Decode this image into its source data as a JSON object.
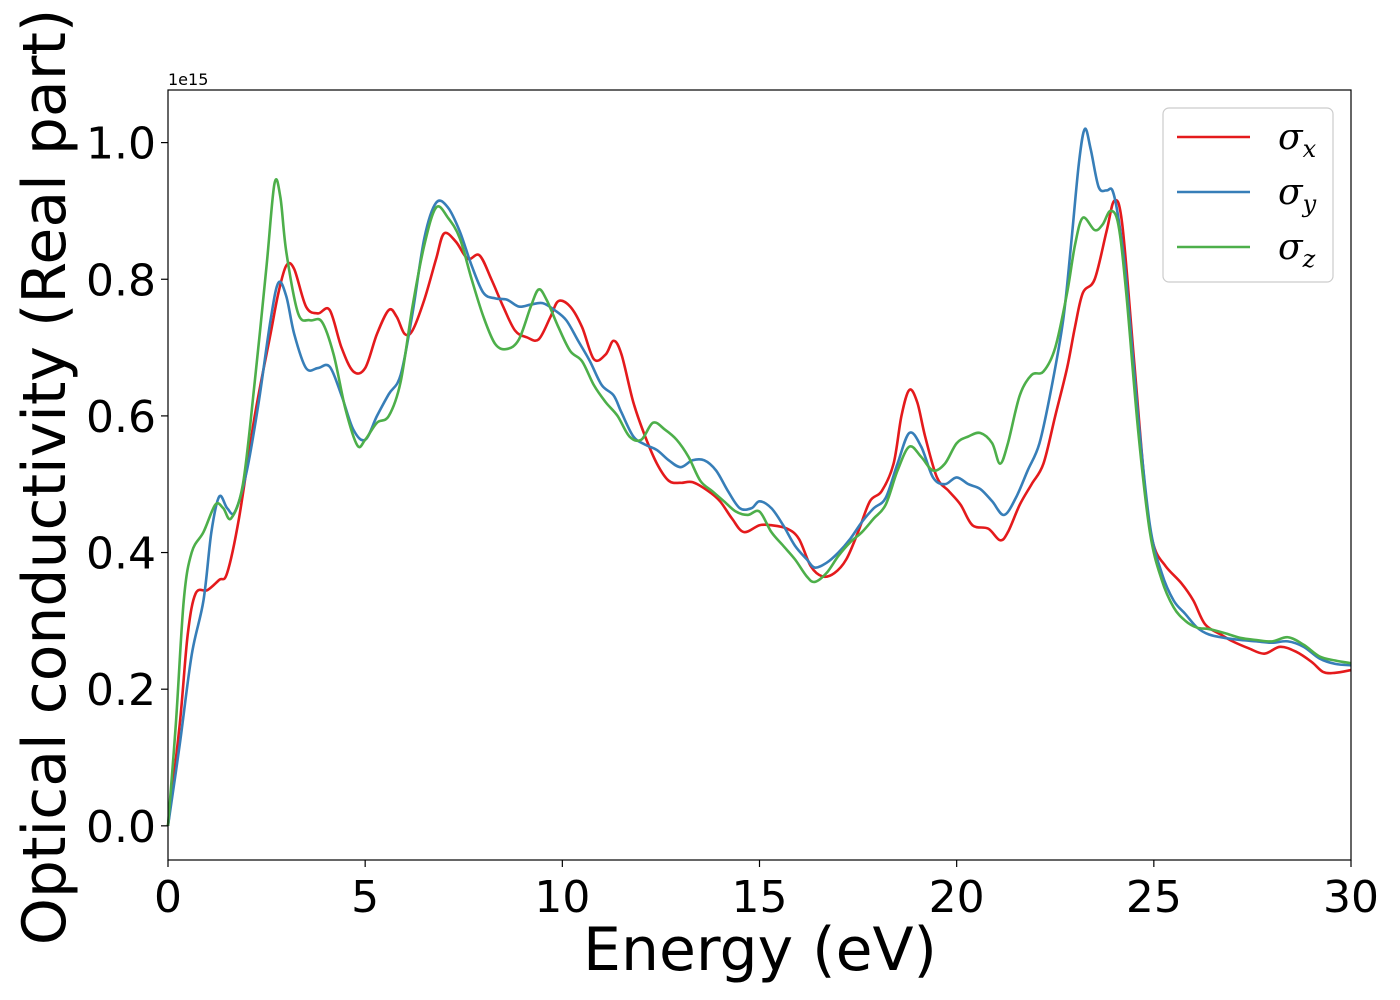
{
  "chart_data": {
    "type": "line",
    "xlabel": "Energy (eV)",
    "ylabel": "Optical conductivity (Real part)",
    "y_offset_label": "1e15",
    "xlim": [
      0,
      30
    ],
    "ylim": [
      -0.05,
      1.077
    ],
    "x_ticks": [
      0,
      5,
      10,
      15,
      20,
      25,
      30
    ],
    "x_tick_labels": [
      "0",
      "5",
      "10",
      "15",
      "20",
      "25",
      "30"
    ],
    "y_ticks": [
      0.0,
      0.2,
      0.4,
      0.6,
      0.8,
      1.0
    ],
    "y_tick_labels": [
      "0.0",
      "0.2",
      "0.4",
      "0.6",
      "0.8",
      "1.0"
    ],
    "grid": false,
    "legend_position": "top-right",
    "series": [
      {
        "name": "σx",
        "symbol": "σ",
        "sub": "x",
        "color": "#e41a1c",
        "points": [
          [
            0,
            0
          ],
          [
            0.3,
            0.15
          ],
          [
            0.5,
            0.28
          ],
          [
            0.7,
            0.34
          ],
          [
            1.0,
            0.345
          ],
          [
            1.3,
            0.36
          ],
          [
            1.5,
            0.37
          ],
          [
            1.8,
            0.45
          ],
          [
            2.2,
            0.6
          ],
          [
            2.6,
            0.72
          ],
          [
            2.8,
            0.78
          ],
          [
            3.0,
            0.82
          ],
          [
            3.2,
            0.815
          ],
          [
            3.5,
            0.76
          ],
          [
            3.8,
            0.75
          ],
          [
            4.1,
            0.755
          ],
          [
            4.4,
            0.7
          ],
          [
            4.7,
            0.665
          ],
          [
            5.0,
            0.67
          ],
          [
            5.3,
            0.72
          ],
          [
            5.6,
            0.755
          ],
          [
            5.8,
            0.745
          ],
          [
            6.0,
            0.72
          ],
          [
            6.2,
            0.725
          ],
          [
            6.5,
            0.77
          ],
          [
            6.8,
            0.83
          ],
          [
            7.0,
            0.867
          ],
          [
            7.3,
            0.855
          ],
          [
            7.6,
            0.83
          ],
          [
            7.9,
            0.835
          ],
          [
            8.2,
            0.8
          ],
          [
            8.5,
            0.76
          ],
          [
            8.8,
            0.725
          ],
          [
            9.1,
            0.715
          ],
          [
            9.4,
            0.712
          ],
          [
            9.7,
            0.745
          ],
          [
            9.9,
            0.768
          ],
          [
            10.2,
            0.76
          ],
          [
            10.5,
            0.73
          ],
          [
            10.8,
            0.683
          ],
          [
            11.1,
            0.69
          ],
          [
            11.3,
            0.71
          ],
          [
            11.5,
            0.69
          ],
          [
            11.8,
            0.62
          ],
          [
            12.1,
            0.57
          ],
          [
            12.4,
            0.53
          ],
          [
            12.7,
            0.505
          ],
          [
            13.0,
            0.502
          ],
          [
            13.3,
            0.503
          ],
          [
            13.7,
            0.49
          ],
          [
            14.0,
            0.475
          ],
          [
            14.3,
            0.45
          ],
          [
            14.6,
            0.43
          ],
          [
            15.0,
            0.44
          ],
          [
            15.3,
            0.44
          ],
          [
            15.7,
            0.435
          ],
          [
            16.0,
            0.42
          ],
          [
            16.3,
            0.38
          ],
          [
            16.6,
            0.365
          ],
          [
            16.9,
            0.37
          ],
          [
            17.2,
            0.39
          ],
          [
            17.5,
            0.43
          ],
          [
            17.8,
            0.475
          ],
          [
            18.1,
            0.49
          ],
          [
            18.4,
            0.53
          ],
          [
            18.6,
            0.6
          ],
          [
            18.8,
            0.638
          ],
          [
            19.0,
            0.62
          ],
          [
            19.2,
            0.57
          ],
          [
            19.5,
            0.51
          ],
          [
            19.8,
            0.49
          ],
          [
            20.1,
            0.47
          ],
          [
            20.4,
            0.44
          ],
          [
            20.8,
            0.435
          ],
          [
            21.1,
            0.418
          ],
          [
            21.3,
            0.43
          ],
          [
            21.6,
            0.47
          ],
          [
            21.9,
            0.5
          ],
          [
            22.2,
            0.53
          ],
          [
            22.5,
            0.6
          ],
          [
            22.8,
            0.67
          ],
          [
            23.0,
            0.73
          ],
          [
            23.2,
            0.78
          ],
          [
            23.5,
            0.8
          ],
          [
            23.8,
            0.87
          ],
          [
            24.0,
            0.915
          ],
          [
            24.2,
            0.88
          ],
          [
            24.5,
            0.68
          ],
          [
            24.8,
            0.48
          ],
          [
            25.0,
            0.41
          ],
          [
            25.3,
            0.38
          ],
          [
            25.7,
            0.355
          ],
          [
            26.0,
            0.33
          ],
          [
            26.3,
            0.295
          ],
          [
            26.7,
            0.28
          ],
          [
            27.0,
            0.27
          ],
          [
            27.4,
            0.26
          ],
          [
            27.8,
            0.252
          ],
          [
            28.2,
            0.262
          ],
          [
            28.6,
            0.255
          ],
          [
            29.0,
            0.24
          ],
          [
            29.3,
            0.225
          ],
          [
            29.6,
            0.224
          ],
          [
            30,
            0.228
          ]
        ]
      },
      {
        "name": "σy",
        "symbol": "σ",
        "sub": "y",
        "color": "#377eb8",
        "points": [
          [
            0,
            0
          ],
          [
            0.3,
            0.12
          ],
          [
            0.6,
            0.25
          ],
          [
            0.9,
            0.33
          ],
          [
            1.1,
            0.43
          ],
          [
            1.3,
            0.482
          ],
          [
            1.5,
            0.465
          ],
          [
            1.7,
            0.46
          ],
          [
            2.0,
            0.52
          ],
          [
            2.3,
            0.62
          ],
          [
            2.6,
            0.74
          ],
          [
            2.8,
            0.795
          ],
          [
            3.0,
            0.775
          ],
          [
            3.2,
            0.72
          ],
          [
            3.5,
            0.67
          ],
          [
            3.8,
            0.67
          ],
          [
            4.1,
            0.672
          ],
          [
            4.4,
            0.63
          ],
          [
            4.7,
            0.58
          ],
          [
            5.0,
            0.565
          ],
          [
            5.3,
            0.6
          ],
          [
            5.6,
            0.632
          ],
          [
            5.9,
            0.66
          ],
          [
            6.2,
            0.75
          ],
          [
            6.5,
            0.86
          ],
          [
            6.8,
            0.912
          ],
          [
            7.1,
            0.905
          ],
          [
            7.4,
            0.87
          ],
          [
            7.7,
            0.82
          ],
          [
            8.0,
            0.78
          ],
          [
            8.3,
            0.772
          ],
          [
            8.6,
            0.77
          ],
          [
            8.9,
            0.76
          ],
          [
            9.2,
            0.763
          ],
          [
            9.5,
            0.765
          ],
          [
            9.8,
            0.755
          ],
          [
            10.1,
            0.74
          ],
          [
            10.4,
            0.71
          ],
          [
            10.7,
            0.68
          ],
          [
            11.0,
            0.645
          ],
          [
            11.3,
            0.63
          ],
          [
            11.5,
            0.605
          ],
          [
            11.8,
            0.57
          ],
          [
            12.1,
            0.558
          ],
          [
            12.4,
            0.55
          ],
          [
            12.7,
            0.535
          ],
          [
            13.0,
            0.525
          ],
          [
            13.3,
            0.535
          ],
          [
            13.6,
            0.535
          ],
          [
            13.9,
            0.52
          ],
          [
            14.2,
            0.49
          ],
          [
            14.5,
            0.465
          ],
          [
            14.8,
            0.465
          ],
          [
            15.0,
            0.475
          ],
          [
            15.3,
            0.465
          ],
          [
            15.6,
            0.44
          ],
          [
            15.9,
            0.41
          ],
          [
            16.2,
            0.39
          ],
          [
            16.4,
            0.378
          ],
          [
            16.7,
            0.385
          ],
          [
            17.0,
            0.4
          ],
          [
            17.3,
            0.42
          ],
          [
            17.6,
            0.445
          ],
          [
            17.9,
            0.465
          ],
          [
            18.2,
            0.48
          ],
          [
            18.5,
            0.53
          ],
          [
            18.8,
            0.575
          ],
          [
            19.1,
            0.555
          ],
          [
            19.4,
            0.51
          ],
          [
            19.7,
            0.5
          ],
          [
            20.0,
            0.51
          ],
          [
            20.3,
            0.5
          ],
          [
            20.6,
            0.493
          ],
          [
            20.9,
            0.475
          ],
          [
            21.2,
            0.455
          ],
          [
            21.5,
            0.48
          ],
          [
            21.8,
            0.52
          ],
          [
            22.1,
            0.56
          ],
          [
            22.4,
            0.64
          ],
          [
            22.7,
            0.74
          ],
          [
            22.9,
            0.85
          ],
          [
            23.1,
            0.97
          ],
          [
            23.25,
            1.02
          ],
          [
            23.4,
            0.99
          ],
          [
            23.6,
            0.935
          ],
          [
            23.8,
            0.93
          ],
          [
            23.95,
            0.93
          ],
          [
            24.1,
            0.89
          ],
          [
            24.3,
            0.8
          ],
          [
            24.6,
            0.6
          ],
          [
            24.9,
            0.44
          ],
          [
            25.2,
            0.37
          ],
          [
            25.5,
            0.33
          ],
          [
            25.8,
            0.31
          ],
          [
            26.1,
            0.29
          ],
          [
            26.4,
            0.28
          ],
          [
            26.8,
            0.275
          ],
          [
            27.2,
            0.272
          ],
          [
            27.6,
            0.27
          ],
          [
            28.0,
            0.268
          ],
          [
            28.4,
            0.27
          ],
          [
            28.8,
            0.262
          ],
          [
            29.2,
            0.245
          ],
          [
            29.6,
            0.237
          ],
          [
            30,
            0.235
          ]
        ]
      },
      {
        "name": "σz",
        "symbol": "σ",
        "sub": "z",
        "color": "#4daf4a",
        "points": [
          [
            0,
            0
          ],
          [
            0.2,
            0.15
          ],
          [
            0.4,
            0.33
          ],
          [
            0.6,
            0.4
          ],
          [
            0.9,
            0.43
          ],
          [
            1.2,
            0.47
          ],
          [
            1.4,
            0.465
          ],
          [
            1.6,
            0.45
          ],
          [
            1.9,
            0.5
          ],
          [
            2.2,
            0.65
          ],
          [
            2.5,
            0.82
          ],
          [
            2.7,
            0.94
          ],
          [
            2.85,
            0.92
          ],
          [
            3.0,
            0.84
          ],
          [
            3.3,
            0.75
          ],
          [
            3.6,
            0.74
          ],
          [
            3.9,
            0.738
          ],
          [
            4.2,
            0.69
          ],
          [
            4.5,
            0.61
          ],
          [
            4.8,
            0.557
          ],
          [
            5.0,
            0.565
          ],
          [
            5.3,
            0.59
          ],
          [
            5.6,
            0.6
          ],
          [
            5.9,
            0.65
          ],
          [
            6.2,
            0.76
          ],
          [
            6.5,
            0.85
          ],
          [
            6.8,
            0.905
          ],
          [
            7.1,
            0.89
          ],
          [
            7.4,
            0.86
          ],
          [
            7.7,
            0.8
          ],
          [
            8.0,
            0.745
          ],
          [
            8.3,
            0.705
          ],
          [
            8.6,
            0.698
          ],
          [
            8.9,
            0.712
          ],
          [
            9.2,
            0.76
          ],
          [
            9.4,
            0.785
          ],
          [
            9.6,
            0.77
          ],
          [
            9.9,
            0.73
          ],
          [
            10.2,
            0.695
          ],
          [
            10.5,
            0.68
          ],
          [
            10.8,
            0.645
          ],
          [
            11.1,
            0.62
          ],
          [
            11.4,
            0.6
          ],
          [
            11.7,
            0.57
          ],
          [
            12.0,
            0.565
          ],
          [
            12.3,
            0.59
          ],
          [
            12.6,
            0.58
          ],
          [
            12.9,
            0.565
          ],
          [
            13.2,
            0.54
          ],
          [
            13.5,
            0.505
          ],
          [
            13.8,
            0.49
          ],
          [
            14.1,
            0.475
          ],
          [
            14.4,
            0.46
          ],
          [
            14.7,
            0.455
          ],
          [
            15.0,
            0.46
          ],
          [
            15.3,
            0.43
          ],
          [
            15.6,
            0.41
          ],
          [
            15.9,
            0.39
          ],
          [
            16.2,
            0.365
          ],
          [
            16.4,
            0.357
          ],
          [
            16.7,
            0.37
          ],
          [
            17.0,
            0.395
          ],
          [
            17.3,
            0.415
          ],
          [
            17.6,
            0.43
          ],
          [
            17.9,
            0.45
          ],
          [
            18.2,
            0.47
          ],
          [
            18.5,
            0.52
          ],
          [
            18.8,
            0.555
          ],
          [
            19.1,
            0.54
          ],
          [
            19.4,
            0.52
          ],
          [
            19.7,
            0.53
          ],
          [
            20.0,
            0.56
          ],
          [
            20.3,
            0.57
          ],
          [
            20.6,
            0.575
          ],
          [
            20.9,
            0.56
          ],
          [
            21.1,
            0.53
          ],
          [
            21.3,
            0.56
          ],
          [
            21.6,
            0.63
          ],
          [
            21.9,
            0.66
          ],
          [
            22.2,
            0.665
          ],
          [
            22.5,
            0.7
          ],
          [
            22.8,
            0.78
          ],
          [
            23.0,
            0.85
          ],
          [
            23.2,
            0.89
          ],
          [
            23.5,
            0.872
          ],
          [
            23.7,
            0.88
          ],
          [
            23.9,
            0.9
          ],
          [
            24.1,
            0.88
          ],
          [
            24.3,
            0.78
          ],
          [
            24.6,
            0.58
          ],
          [
            24.9,
            0.43
          ],
          [
            25.2,
            0.36
          ],
          [
            25.5,
            0.32
          ],
          [
            25.8,
            0.3
          ],
          [
            26.1,
            0.29
          ],
          [
            26.4,
            0.288
          ],
          [
            26.8,
            0.282
          ],
          [
            27.2,
            0.275
          ],
          [
            27.6,
            0.272
          ],
          [
            28.0,
            0.27
          ],
          [
            28.4,
            0.276
          ],
          [
            28.8,
            0.265
          ],
          [
            29.2,
            0.248
          ],
          [
            29.6,
            0.242
          ],
          [
            30,
            0.238
          ]
        ]
      }
    ]
  }
}
